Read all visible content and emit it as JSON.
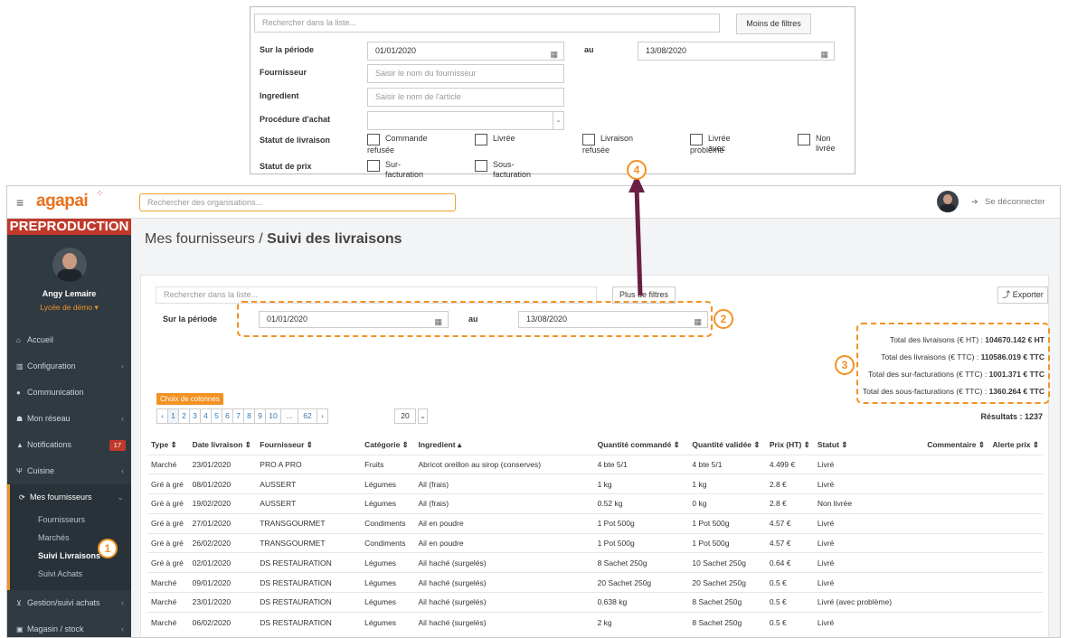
{
  "popup": {
    "search_placeholder": "Rechercher dans la liste...",
    "less_filters": "Moins de filtres",
    "period_label": "Sur la période",
    "date_from": "01/01/2020",
    "to_label": "au",
    "date_to": "13/08/2020",
    "supplier_label": "Fournisseur",
    "supplier_placeholder": "Saisir le nom du fournisseur",
    "ingredient_label": "Ingredient",
    "ingredient_placeholder": "Saisir le nom de l'article",
    "procedure_label": "Procédure d'achat",
    "status_label": "Statut de livraison",
    "status_options": [
      "Commande",
      "refusée",
      "Livrée",
      "Livraison",
      "refusée",
      "Livrée avec",
      "problème",
      "Non livrée"
    ],
    "price_status_label": "Statut de prix",
    "price_options": [
      "Sur-facturation",
      "Sous-facturation"
    ]
  },
  "topbar": {
    "brand": "agapai",
    "org_search_placeholder": "Rechercher des organisations...",
    "logout": "Se déconnecter"
  },
  "sidebar": {
    "env_label": "PREPRODUCTION",
    "user_name": "Angy Lemaire",
    "school": "Lycée de démo ▾",
    "items": [
      "Accueil",
      "Configuration",
      "Communication",
      "Mon réseau",
      "Notifications",
      "Cuisine",
      "Mes fournisseurs",
      "Gestion/suivi achats",
      "Magasin / stock"
    ],
    "notif_badge": "17",
    "sub_items": [
      "Fournisseurs",
      "Marchés",
      "Suivi Livraisons",
      "Suivi Achats"
    ]
  },
  "page": {
    "breadcrumb_parent": "Mes fournisseurs",
    "breadcrumb_sep": " / ",
    "title": "Suivi des livraisons",
    "search_placeholder": "Rechercher dans la liste...",
    "more_filters": "Plus de filtres",
    "export": "Exporter",
    "period_label": "Sur la période",
    "date_from": "01/01/2020",
    "to_label": "au",
    "date_to": "13/08/2020",
    "columns_button": "Choix de colonnes",
    "pagination": [
      "‹",
      "1",
      "2",
      "3",
      "4",
      "5",
      "6",
      "7",
      "8",
      "9",
      "10",
      "...",
      "62",
      "›"
    ],
    "page_size": "20",
    "results": "Résultats : 1237",
    "totals": [
      {
        "label": "Total des livraisons (€ HT) : ",
        "value": "104670.142 € HT"
      },
      {
        "label": "Total des livraisons (€ TTC) : ",
        "value": "110586.019 € TTC"
      },
      {
        "label": "Total des sur-facturations (€ TTC) : ",
        "value": "1001.371 € TTC"
      },
      {
        "label": "Total des sous-facturations (€ TTC) : ",
        "value": "1360.264 € TTC"
      }
    ]
  },
  "table": {
    "headers": [
      "Type ⇕",
      "Date livraison ⇕",
      "Fournisseur ⇕",
      "Catégorie ⇕",
      "Ingredient ▴",
      "Quantité commandé ⇕",
      "Quantité validée ⇕",
      "Prix (HT) ⇕",
      "Statut ⇕",
      "Commentaire ⇕",
      "Alerte prix ⇕"
    ],
    "rows": [
      [
        "Marché",
        "23/01/2020",
        "PRO A PRO",
        "Fruits",
        "Abricot oreillon au sirop (conserves)",
        "4 bte 5/1",
        "4 bte 5/1",
        "4.499 €",
        "Livré",
        "",
        ""
      ],
      [
        "Gré à gré",
        "08/01/2020",
        "AUSSERT",
        "Légumes",
        "Ail (frais)",
        "1 kg",
        "1 kg",
        "2.8 €",
        "Livré",
        "",
        ""
      ],
      [
        "Gré à gré",
        "19/02/2020",
        "AUSSERT",
        "Légumes",
        "Ail (frais)",
        "0.52 kg",
        "0 kg",
        "2.8 €",
        "Non livrée",
        "",
        ""
      ],
      [
        "Gré à gré",
        "27/01/2020",
        "TRANSGOURMET",
        "Condiments",
        "Ail en poudre",
        "1 Pot 500g",
        "1 Pot 500g",
        "4.57 €",
        "Livré",
        "",
        ""
      ],
      [
        "Gré à gré",
        "26/02/2020",
        "TRANSGOURMET",
        "Condiments",
        "Ail en poudre",
        "1 Pot 500g",
        "1 Pot 500g",
        "4.57 €",
        "Livré",
        "",
        ""
      ],
      [
        "Gré à gré",
        "02/01/2020",
        "DS RESTAURATION",
        "Légumes",
        "Ail haché (surgelés)",
        "8 Sachet 250g",
        "10 Sachet 250g",
        "0.64 €",
        "Livré",
        "",
        ""
      ],
      [
        "Marché",
        "09/01/2020",
        "DS RESTAURATION",
        "Légumes",
        "Ail haché (surgelés)",
        "20 Sachet 250g",
        "20 Sachet 250g",
        "0.5 €",
        "Livré",
        "",
        ""
      ],
      [
        "Marché",
        "23/01/2020",
        "DS RESTAURATION",
        "Légumes",
        "Ail haché (surgelés)",
        "0.638 kg",
        "8 Sachet 250g",
        "0.5 €",
        "Livré (avec problème)",
        "",
        ""
      ],
      [
        "Marché",
        "06/02/2020",
        "DS RESTAURATION",
        "Légumes",
        "Ail haché (surgelés)",
        "2 kg",
        "8 Sachet 250g",
        "0.5 €",
        "Livré",
        "",
        ""
      ]
    ]
  },
  "callouts": [
    "1",
    "2",
    "3",
    "4"
  ],
  "colors": {
    "accent": "#f39223",
    "sidebar": "#2f3a42",
    "env": "#c0392b",
    "arrow": "#6b1f44"
  }
}
